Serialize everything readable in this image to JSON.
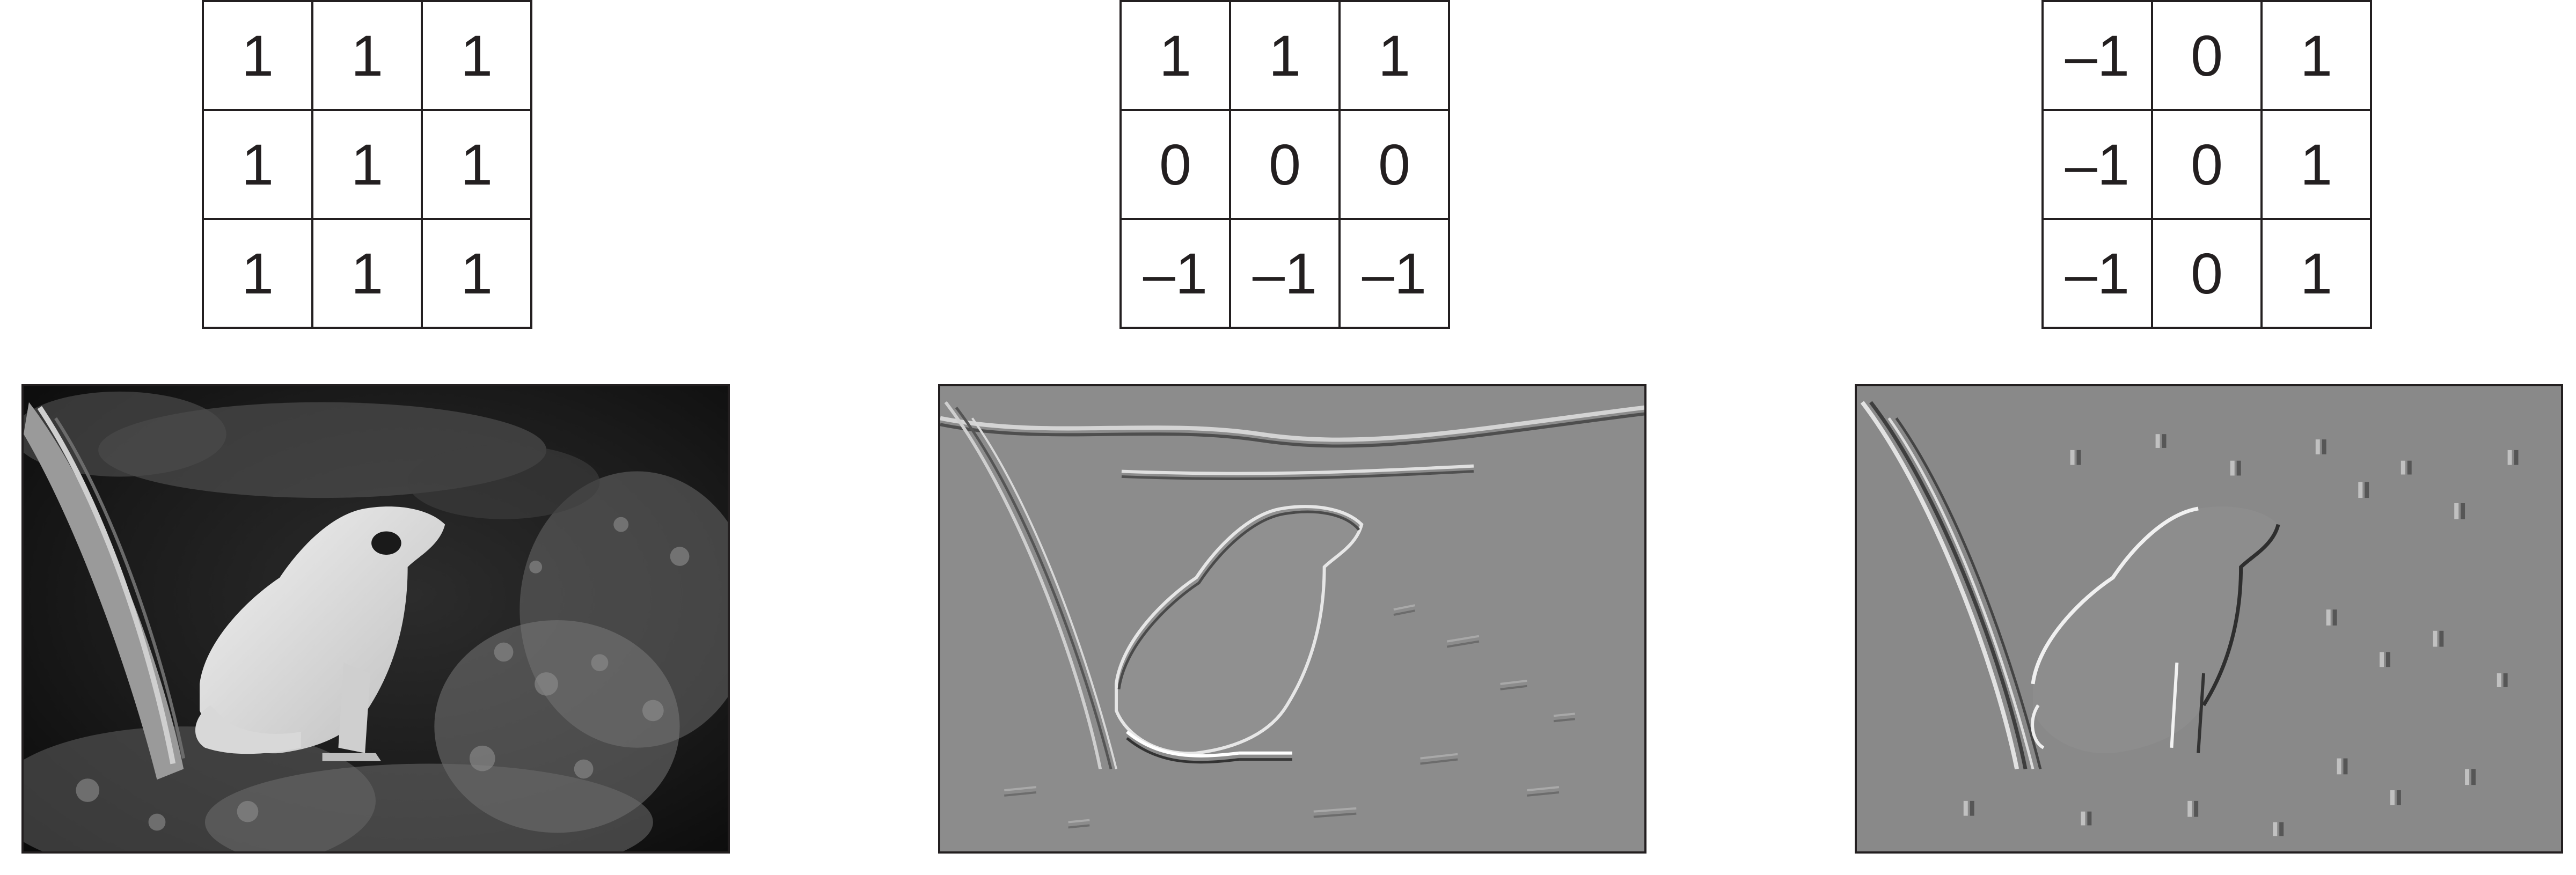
{
  "panels": [
    {
      "kernel": [
        [
          "1",
          "1",
          "1"
        ],
        [
          "1",
          "1",
          "1"
        ],
        [
          "1",
          "1",
          "1"
        ]
      ],
      "image_kind": "original grayscale photo of a frog among leaves"
    },
    {
      "kernel": [
        [
          "1",
          "1",
          "1"
        ],
        [
          "0",
          "0",
          "0"
        ],
        [
          "–1",
          "–1",
          "–1"
        ]
      ],
      "image_kind": "horizontal edge filtered (embossed) frog photo"
    },
    {
      "kernel": [
        [
          "–1",
          "0",
          "1"
        ],
        [
          "–1",
          "0",
          "1"
        ],
        [
          "–1",
          "0",
          "1"
        ]
      ],
      "image_kind": "vertical edge filtered (embossed) frog photo"
    }
  ],
  "colors": {
    "ink": "#231f20",
    "emboss_gray": "#8a8a8a"
  }
}
